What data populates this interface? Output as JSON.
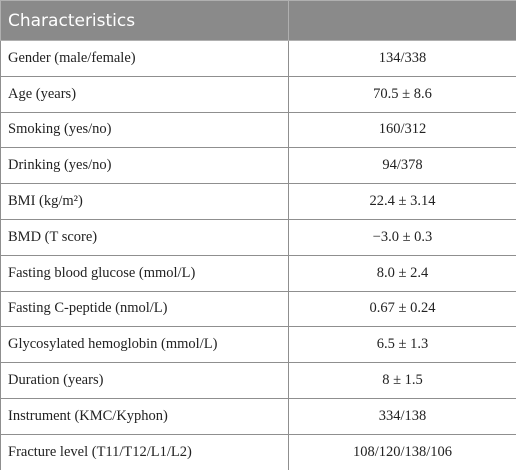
{
  "table": {
    "header": [
      "Characteristics"
    ],
    "rows": [
      [
        "Gender (male/female)",
        "134/338"
      ],
      [
        "Age (years)",
        "70.5 ± 8.6"
      ],
      [
        "Smoking (yes/no)",
        "160/312"
      ],
      [
        "Drinking (yes/no)",
        "94/378"
      ],
      [
        "BMI (kg/m²)",
        "22.4 ± 3.14"
      ],
      [
        "BMD (T score)",
        "−3.0 ± 0.3"
      ],
      [
        "Fasting blood glucose (mmol/L)",
        "8.0 ± 2.4"
      ],
      [
        "Fasting C-peptide (nmol/L)",
        "0.67 ± 0.24"
      ],
      [
        "Glycosylated hemoglobin (mmol/L)",
        "6.5 ± 1.3"
      ],
      [
        "Duration (years)",
        "8 ± 1.5"
      ],
      [
        "Instrument (KMC/Kyphon)",
        "334/138"
      ],
      [
        "Fracture level (T11/T12/L1/L2)",
        "108/120/138/106"
      ]
    ]
  }
}
